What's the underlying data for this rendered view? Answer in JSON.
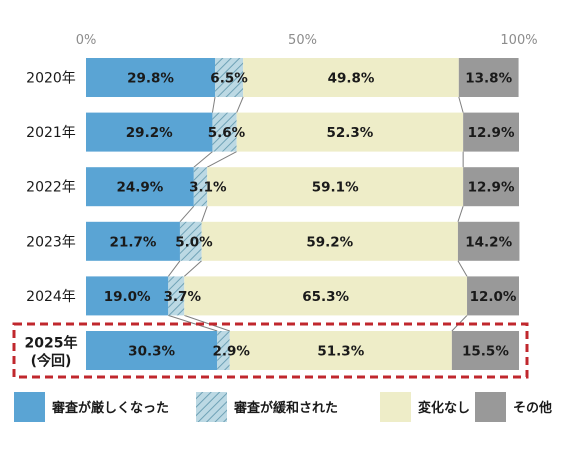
{
  "chart_data": {
    "type": "bar",
    "orientation": "horizontal",
    "stacked": true,
    "title": "",
    "xlabel": "",
    "ylabel": "",
    "xlim": [
      0,
      100
    ],
    "x_ticks": [
      "0%",
      "50%",
      "100%"
    ],
    "categories": [
      "2020年",
      "2021年",
      "2022年",
      "2023年",
      "2024年",
      "2025年(今回)"
    ],
    "highlighted_category": "2025年(今回)",
    "series": [
      {
        "name": "審査が厳しくなった",
        "color": "#5aa4d4",
        "pattern": "none",
        "values": [
          29.8,
          29.2,
          24.9,
          21.7,
          19.0,
          30.3
        ]
      },
      {
        "name": "審査が緩和された",
        "color": "#9fc5d3",
        "pattern": "diagonal-hatch",
        "values": [
          6.5,
          5.6,
          3.1,
          5.0,
          3.7,
          2.9
        ]
      },
      {
        "name": "変化なし",
        "color": "#eeedc8",
        "pattern": "none",
        "values": [
          49.8,
          52.3,
          59.1,
          59.2,
          65.3,
          51.3
        ]
      },
      {
        "name": "その他",
        "color": "#999999",
        "pattern": "none",
        "values": [
          13.8,
          12.9,
          12.9,
          14.2,
          12.0,
          15.5
        ]
      }
    ],
    "legend_position": "bottom",
    "highlight_color": "#c0272d",
    "grid": false
  }
}
